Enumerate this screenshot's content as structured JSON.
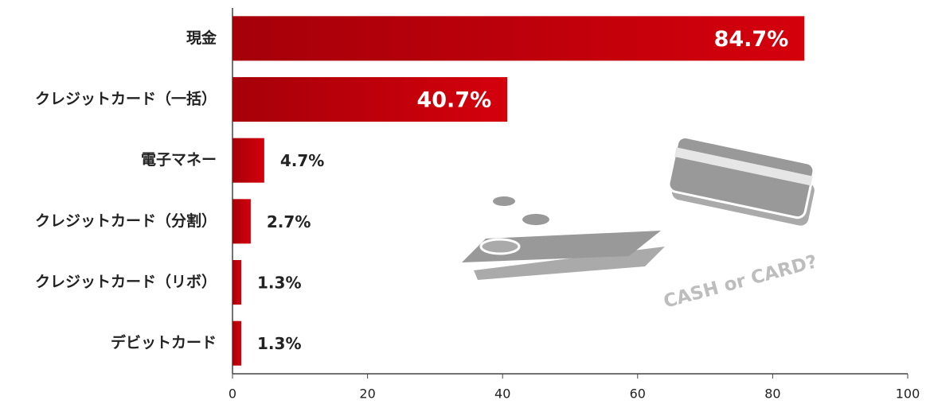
{
  "chart_data": {
    "type": "bar",
    "orientation": "horizontal",
    "categories": [
      "現金",
      "クレジットカード（一括）",
      "電子マネー",
      "クレジットカード（分割）",
      "クレジットカード（リボ）",
      "デビットカード"
    ],
    "values": [
      84.7,
      40.7,
      4.7,
      2.7,
      1.3,
      1.3
    ],
    "value_labels": [
      "84.7%",
      "40.7%",
      "4.7%",
      "2.7%",
      "1.3%",
      "1.3%"
    ],
    "color": "#d4000c",
    "xlim": [
      0,
      100
    ],
    "xticks": [
      0,
      20,
      40,
      60,
      80,
      100
    ],
    "annotation": "CASH or CARD?"
  }
}
